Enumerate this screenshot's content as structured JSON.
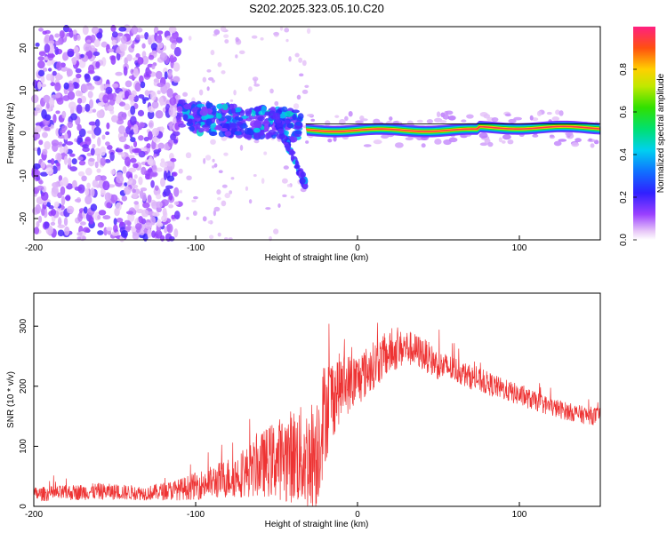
{
  "chart_data": [
    {
      "type": "heatmap",
      "title": "S202.2025.323.05.10.C20",
      "xlabel": "Height of straight line (km)",
      "ylabel": "Frequency (Hz)",
      "xlim": [
        -200,
        150
      ],
      "ylim": [
        -25,
        25
      ],
      "xticks": [
        -200,
        -100,
        0,
        100
      ],
      "xtick_labels": [
        "-200",
        "-100",
        "0",
        "100"
      ],
      "yticks": [
        -20,
        -10,
        0,
        10,
        20
      ],
      "ytick_labels": [
        "-20",
        "-10",
        "0",
        "10",
        "20"
      ],
      "colorbar": {
        "label": "Normalized spectral amplitude",
        "range": [
          0,
          1
        ],
        "ticks": [
          0,
          0.2,
          0.4,
          0.6,
          0.8
        ],
        "tick_labels": [
          "0.0",
          "0.2",
          "0.4",
          "0.6",
          "0.8"
        ]
      },
      "features": [
        {
          "name": "scattered noise",
          "x_range": [
            -200,
            -110
          ],
          "y_range": [
            -25,
            25
          ],
          "amplitude": 0.1
        },
        {
          "name": "broadening band",
          "x_range": [
            -110,
            -35
          ],
          "y_range": [
            0,
            8
          ],
          "amplitude": 0.3
        },
        {
          "name": "descending branch",
          "x_range": [
            -50,
            -32
          ],
          "y_range": [
            -12,
            3
          ],
          "amplitude": 0.3
        },
        {
          "name": "narrow carrier line",
          "x_range": [
            -32,
            150
          ],
          "y_range": [
            0,
            2
          ],
          "amplitude": 0.95
        }
      ]
    },
    {
      "type": "line",
      "xlabel": "Height of straight line (km)",
      "ylabel": "SNR (10 * v/v)",
      "xlim": [
        -200,
        150
      ],
      "ylim": [
        0,
        355
      ],
      "xticks": [
        -200,
        -100,
        0,
        100
      ],
      "xtick_labels": [
        "-200",
        "-100",
        "0",
        "100"
      ],
      "yticks": [
        0,
        100,
        200,
        300
      ],
      "ytick_labels": [
        "0",
        "100",
        "200",
        "300"
      ],
      "series": [
        {
          "name": "SNR",
          "color": "#ee3333",
          "envelope_x": [
            -200,
            -160,
            -130,
            -110,
            -90,
            -70,
            -55,
            -40,
            -30,
            -25,
            -20,
            -15,
            -10,
            0,
            10,
            20,
            30,
            40,
            50,
            60,
            70,
            80,
            90,
            100,
            110,
            120,
            130,
            140,
            150
          ],
          "envelope_mean": [
            20,
            25,
            22,
            28,
            40,
            55,
            75,
            85,
            80,
            95,
            160,
            185,
            200,
            210,
            235,
            255,
            265,
            255,
            235,
            228,
            215,
            205,
            195,
            185,
            175,
            165,
            158,
            152,
            150
          ],
          "envelope_spread": [
            12,
            14,
            12,
            18,
            28,
            40,
            60,
            80,
            90,
            100,
            90,
            70,
            55,
            45,
            40,
            35,
            30,
            28,
            25,
            22,
            20,
            20,
            18,
            18,
            16,
            16,
            15,
            15,
            15
          ]
        }
      ]
    }
  ]
}
